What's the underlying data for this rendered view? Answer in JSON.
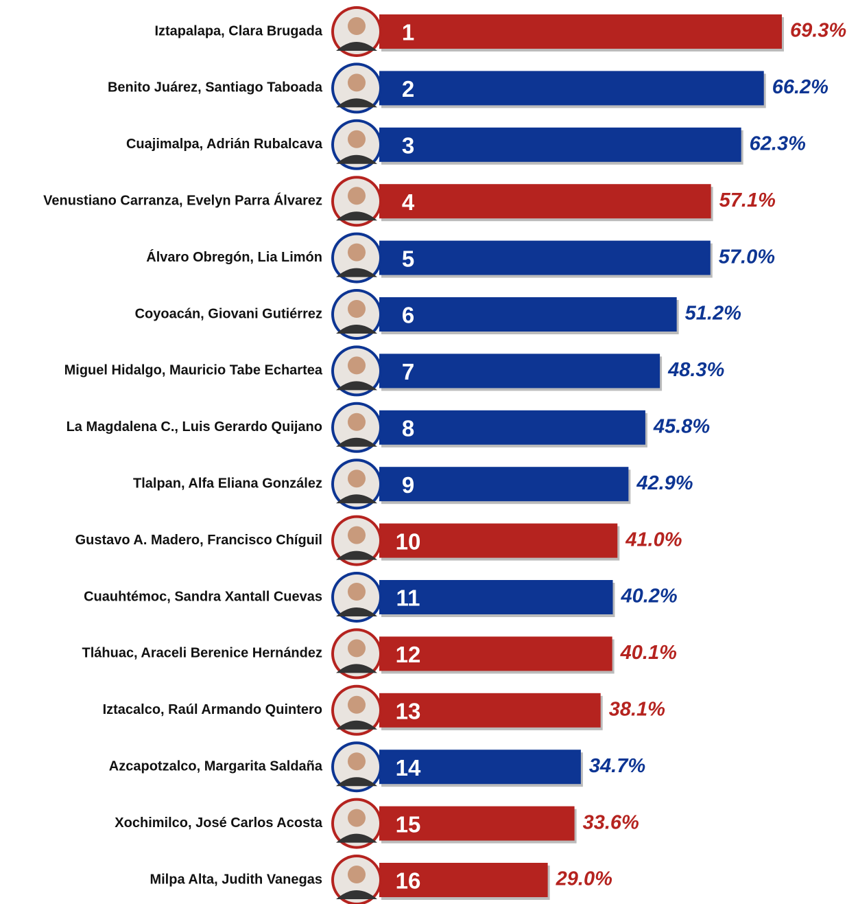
{
  "chart_data": {
    "type": "bar",
    "orientation": "horizontal",
    "categories": [
      "Iztapalapa, Clara Brugada",
      "Benito Juárez, Santiago Taboada",
      "Cuajimalpa, Adrián Rubalcava",
      "Venustiano Carranza, Evelyn Parra Álvarez",
      "Álvaro Obregón, Lia Limón",
      "Coyoacán, Giovani Gutiérrez",
      "Miguel Hidalgo, Mauricio Tabe Echartea",
      "La Magdalena C., Luis Gerardo Quijano",
      "Tlalpan, Alfa Eliana González",
      "Gustavo A. Madero, Francisco Chíguil",
      "Cuauhtémoc, Sandra Xantall Cuevas",
      "Tláhuac, Araceli Berenice Hernández",
      "Iztacalco, Raúl Armando Quintero",
      "Azcapotzalco, Margarita Saldaña",
      "Xochimilco, José Carlos Acosta",
      "Milpa Alta, Judith Vanegas"
    ],
    "ranks": [
      1,
      2,
      3,
      4,
      5,
      6,
      7,
      8,
      9,
      10,
      11,
      12,
      13,
      14,
      15,
      16
    ],
    "values": [
      69.3,
      66.2,
      62.3,
      57.1,
      57.0,
      51.2,
      48.3,
      45.8,
      42.9,
      41.0,
      40.2,
      40.1,
      38.1,
      34.7,
      33.6,
      29.0
    ],
    "value_labels": [
      "69.3%",
      "66.2%",
      "62.3%",
      "57.1%",
      "57.0%",
      "51.2%",
      "48.3%",
      "45.8%",
      "42.9%",
      "41.0%",
      "40.2%",
      "40.1%",
      "38.1%",
      "34.7%",
      "33.6%",
      "29.0%"
    ],
    "colors": [
      "#b5231f",
      "#0d3593",
      "#0d3593",
      "#b5231f",
      "#0d3593",
      "#0d3593",
      "#0d3593",
      "#0d3593",
      "#0d3593",
      "#b5231f",
      "#0d3593",
      "#b5231f",
      "#b5231f",
      "#0d3593",
      "#b5231f",
      "#b5231f"
    ]
  }
}
